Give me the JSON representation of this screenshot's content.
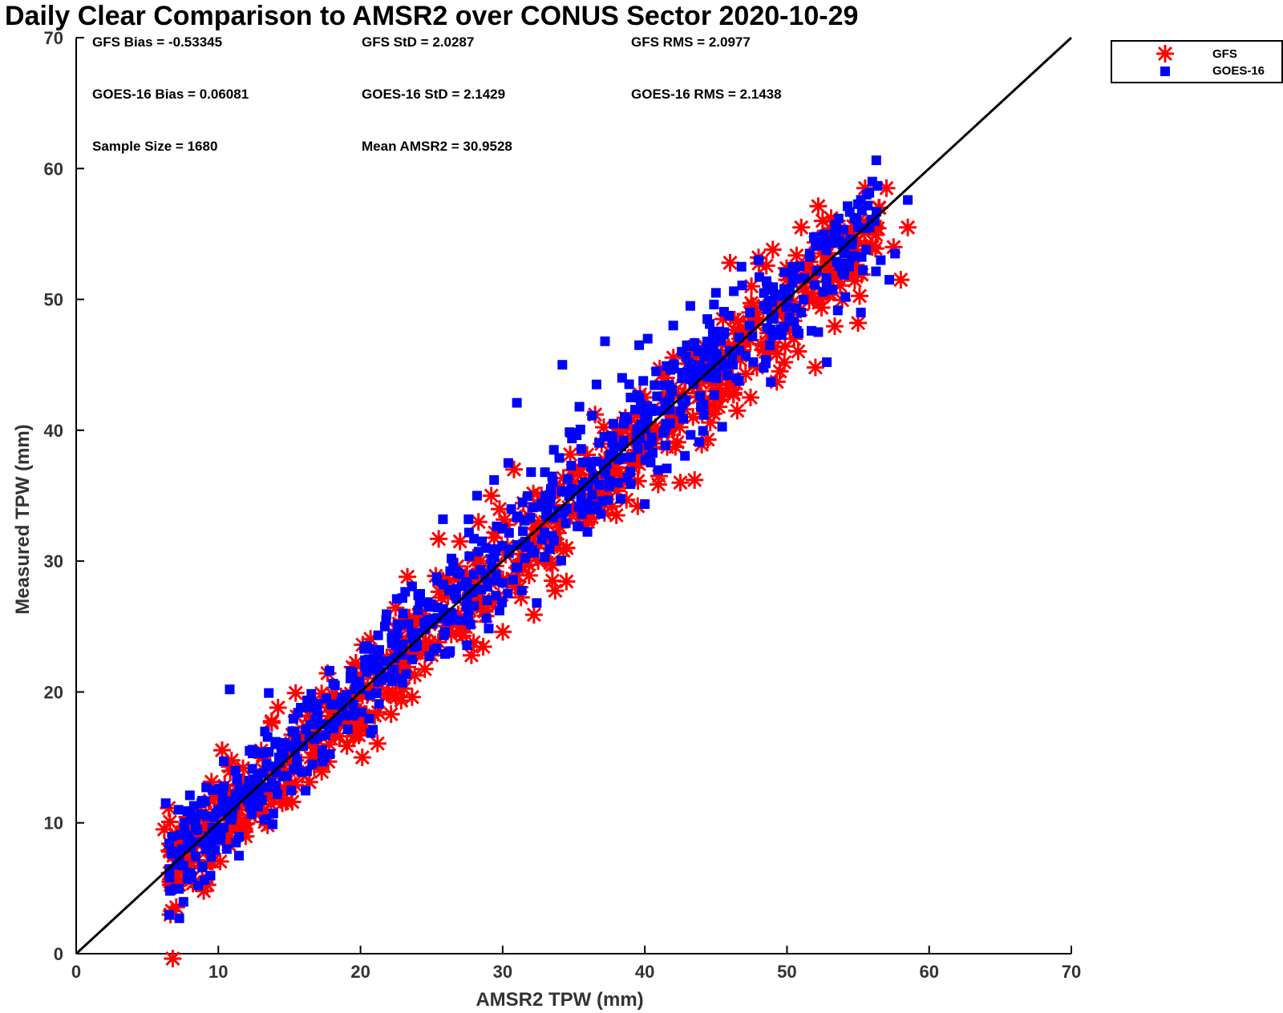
{
  "chart_data": {
    "type": "scatter",
    "title": "Daily Clear Comparison to AMSR2 over CONUS Sector 2020-10-29",
    "xlabel": "AMSR2 TPW (mm)",
    "ylabel": "Measured TPW (mm)",
    "xlim": [
      0,
      70
    ],
    "ylim": [
      0,
      70
    ],
    "xticks": [
      "0",
      "10",
      "20",
      "30",
      "40",
      "50",
      "60",
      "70"
    ],
    "yticks": [
      "0",
      "10",
      "20",
      "30",
      "40",
      "50",
      "60",
      "70"
    ],
    "grid": false,
    "legend_position": "top-right outside",
    "reference_line": {
      "from": [
        0,
        0
      ],
      "to": [
        70,
        70
      ],
      "color": "#000000"
    },
    "stats": [
      "GFS Bias = -0.53345",
      "GFS StD = 2.0287",
      "GFS RMS = 2.0977",
      "GOES-16 Bias = 0.06081",
      "GOES-16 StD = 2.1429",
      "GOES-16 RMS = 2.1438",
      "Sample Size = 1680",
      "Mean AMSR2 = 30.9528"
    ],
    "series": [
      {
        "name": "GFS",
        "marker": "asterisk",
        "color": "#ff0000",
        "points": [
          [
            6.2,
            9.5
          ],
          [
            6.6,
            7.8
          ],
          [
            7.0,
            9.0
          ],
          [
            7.5,
            9.3
          ],
          [
            8.0,
            9.8
          ],
          [
            8.5,
            8.9
          ],
          [
            9.0,
            9.6
          ],
          [
            9.5,
            9.2
          ],
          [
            10.0,
            8.9
          ],
          [
            10.5,
            10.5
          ],
          [
            10.8,
            14.3
          ],
          [
            11.2,
            9.4
          ],
          [
            11.8,
            13.2
          ],
          [
            12.2,
            10.6
          ],
          [
            12.8,
            12.5
          ],
          [
            13.2,
            11.0
          ],
          [
            13.8,
            13.8
          ],
          [
            14.2,
            18.8
          ],
          [
            14.5,
            11.5
          ],
          [
            15.0,
            15.5
          ],
          [
            15.2,
            11.6
          ],
          [
            15.8,
            16.2
          ],
          [
            16.5,
            15.0
          ],
          [
            17.2,
            17.6
          ],
          [
            17.8,
            16.0
          ],
          [
            18.3,
            18.5
          ],
          [
            19.0,
            19.2
          ],
          [
            19.5,
            16.6
          ],
          [
            20.0,
            17.2
          ],
          [
            20.5,
            20.5
          ],
          [
            21.0,
            18.2
          ],
          [
            21.5,
            22.5
          ],
          [
            22.0,
            19.8
          ],
          [
            22.5,
            23.5
          ],
          [
            23.0,
            21.5
          ],
          [
            23.3,
            28.8
          ],
          [
            24.0,
            23.0
          ],
          [
            24.5,
            25.5
          ],
          [
            25.0,
            22.8
          ],
          [
            25.5,
            31.7
          ],
          [
            25.8,
            28.5
          ],
          [
            26.2,
            25.0
          ],
          [
            27.0,
            31.5
          ],
          [
            27.5,
            29.0
          ],
          [
            27.8,
            22.8
          ],
          [
            28.3,
            33.0
          ],
          [
            28.8,
            25.8
          ],
          [
            29.2,
            35.0
          ],
          [
            29.8,
            27.0
          ],
          [
            30.2,
            30.5
          ],
          [
            30.8,
            37.0
          ],
          [
            31.2,
            28.0
          ],
          [
            31.8,
            33.5
          ],
          [
            32.2,
            25.9
          ],
          [
            32.5,
            30.0
          ],
          [
            33.0,
            33.0
          ],
          [
            33.5,
            28.5
          ],
          [
            34.0,
            35.5
          ],
          [
            34.5,
            31.0
          ],
          [
            35.0,
            34.0
          ],
          [
            35.5,
            37.0
          ],
          [
            36.0,
            33.0
          ],
          [
            36.5,
            41.2
          ],
          [
            37.0,
            34.5
          ],
          [
            37.5,
            36.5
          ],
          [
            38.0,
            33.5
          ],
          [
            38.5,
            40.0
          ],
          [
            39.0,
            37.5
          ],
          [
            39.5,
            34.2
          ],
          [
            40.0,
            42.5
          ],
          [
            40.5,
            39.5
          ],
          [
            41.0,
            36.5
          ],
          [
            41.5,
            44.0
          ],
          [
            42.0,
            41.0
          ],
          [
            42.5,
            36.0
          ],
          [
            43.0,
            45.5
          ],
          [
            43.5,
            36.2
          ],
          [
            44.0,
            38.9
          ],
          [
            44.5,
            46.0
          ],
          [
            45.0,
            43.0
          ],
          [
            45.5,
            48.5
          ],
          [
            46.0,
            52.8
          ],
          [
            46.5,
            41.5
          ],
          [
            47.0,
            47.0
          ],
          [
            47.5,
            51.0
          ],
          [
            48.0,
            53.2
          ],
          [
            48.5,
            46.0
          ],
          [
            49.0,
            53.8
          ],
          [
            49.5,
            44.5
          ],
          [
            50.0,
            51.5
          ],
          [
            50.5,
            47.0
          ],
          [
            51.0,
            55.5
          ],
          [
            51.5,
            52.5
          ],
          [
            52.0,
            44.8
          ],
          [
            52.5,
            56.0
          ],
          [
            53.0,
            50.5
          ],
          [
            53.5,
            56.0
          ],
          [
            54.0,
            53.5
          ],
          [
            54.5,
            55.0
          ],
          [
            55.0,
            48.2
          ],
          [
            55.5,
            58.5
          ],
          [
            56.0,
            54.0
          ],
          [
            56.5,
            57.0
          ],
          [
            57.0,
            58.5
          ],
          [
            57.5,
            54.0
          ],
          [
            58.0,
            51.5
          ],
          [
            58.5,
            55.5
          ]
        ]
      },
      {
        "name": "GOES-16",
        "marker": "square",
        "color": "#0000ff",
        "points": [
          [
            6.3,
            11.5
          ],
          [
            6.7,
            7.7
          ],
          [
            7.2,
            11.0
          ],
          [
            7.6,
            10.0
          ],
          [
            8.0,
            12.1
          ],
          [
            8.4,
            9.8
          ],
          [
            8.8,
            11.5
          ],
          [
            9.2,
            10.5
          ],
          [
            9.6,
            12.5
          ],
          [
            10.0,
            11.0
          ],
          [
            10.4,
            12.8
          ],
          [
            10.8,
            20.2
          ],
          [
            11.2,
            14.0
          ],
          [
            11.8,
            12.5
          ],
          [
            12.2,
            15.5
          ],
          [
            12.8,
            13.0
          ],
          [
            13.4,
            14.5
          ],
          [
            14.0,
            16.0
          ],
          [
            14.6,
            15.2
          ],
          [
            15.2,
            17.0
          ],
          [
            15.8,
            18.8
          ],
          [
            16.5,
            17.5
          ],
          [
            17.0,
            18.2
          ],
          [
            17.6,
            19.5
          ],
          [
            18.2,
            20.5
          ],
          [
            18.8,
            19.2
          ],
          [
            19.4,
            21.5
          ],
          [
            20.0,
            20.2
          ],
          [
            20.6,
            22.5
          ],
          [
            21.2,
            21.8
          ],
          [
            21.8,
            25.5
          ],
          [
            22.4,
            23.8
          ],
          [
            23.0,
            26.0
          ],
          [
            23.6,
            24.5
          ],
          [
            24.2,
            27.5
          ],
          [
            24.8,
            26.5
          ],
          [
            25.4,
            28.5
          ],
          [
            25.8,
            33.2
          ],
          [
            26.4,
            30.2
          ],
          [
            27.0,
            29.0
          ],
          [
            27.6,
            33.2
          ],
          [
            28.2,
            35.0
          ],
          [
            28.8,
            31.0
          ],
          [
            29.4,
            36.2
          ],
          [
            30.0,
            32.5
          ],
          [
            30.4,
            37.5
          ],
          [
            31.0,
            42.1
          ],
          [
            31.4,
            34.5
          ],
          [
            32.0,
            36.8
          ],
          [
            32.4,
            26.8
          ],
          [
            33.0,
            35.0
          ],
          [
            33.6,
            38.5
          ],
          [
            34.2,
            45.0
          ],
          [
            34.8,
            39.8
          ],
          [
            35.4,
            41.8
          ],
          [
            36.0,
            37.5
          ],
          [
            36.6,
            43.5
          ],
          [
            37.2,
            46.8
          ],
          [
            37.8,
            40.5
          ],
          [
            38.4,
            44.0
          ],
          [
            39.0,
            42.5
          ],
          [
            39.6,
            46.5
          ],
          [
            40.2,
            47.0
          ],
          [
            40.8,
            44.5
          ],
          [
            41.4,
            40.0
          ],
          [
            42.0,
            48.0
          ],
          [
            42.6,
            46.0
          ],
          [
            43.2,
            49.5
          ],
          [
            43.8,
            44.2
          ],
          [
            44.4,
            48.5
          ],
          [
            45.0,
            50.5
          ],
          [
            45.6,
            47.5
          ],
          [
            46.2,
            45.0
          ],
          [
            46.8,
            52.5
          ],
          [
            47.4,
            49.0
          ],
          [
            48.0,
            53.0
          ],
          [
            48.6,
            51.0
          ],
          [
            49.2,
            47.5
          ],
          [
            49.8,
            50.8
          ],
          [
            50.4,
            52.5
          ],
          [
            51.0,
            49.0
          ],
          [
            51.6,
            53.5
          ],
          [
            52.2,
            47.5
          ],
          [
            52.8,
            45.2
          ],
          [
            53.4,
            55.5
          ],
          [
            54.0,
            52.0
          ],
          [
            54.6,
            54.5
          ],
          [
            55.2,
            49.0
          ],
          [
            55.6,
            58.0
          ],
          [
            55.8,
            55.5
          ],
          [
            56.0,
            59.0
          ],
          [
            56.6,
            53.0
          ],
          [
            57.2,
            51.5
          ],
          [
            57.6,
            53.5
          ],
          [
            58.5,
            57.6
          ]
        ]
      }
    ]
  }
}
